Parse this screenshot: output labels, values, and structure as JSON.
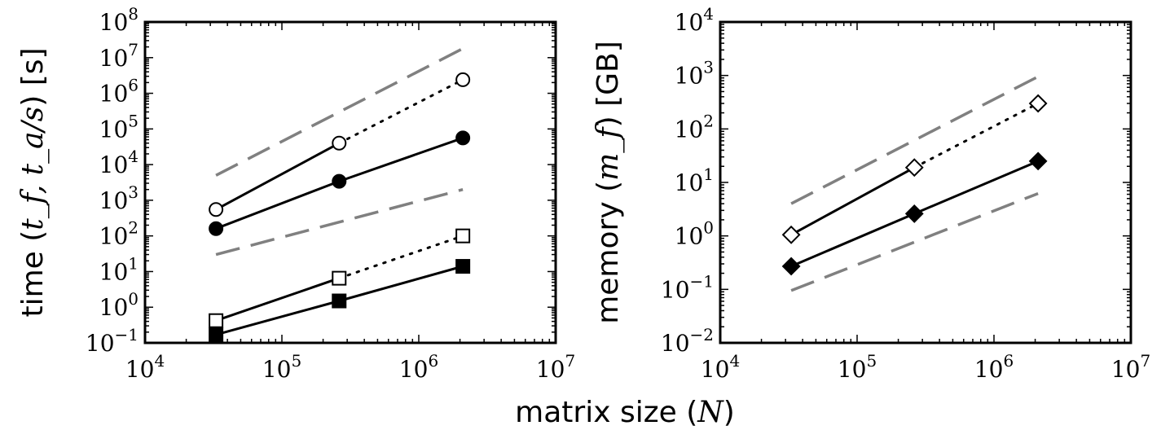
{
  "chart_data": [
    {
      "type": "line",
      "xscale": "log",
      "yscale": "log",
      "xlim": [
        10000,
        10000000
      ],
      "ylim": [
        0.1,
        100000000
      ],
      "xlabel": "",
      "ylabel": "time (t_f, t_a/s) [s]",
      "ylabel_parts": {
        "prefix": "time (",
        "math": "t_f, t_a/s",
        "suffix": ") [s]"
      },
      "xtick_labels": [
        {
          "value": 10000,
          "base": "10",
          "exp": "4"
        },
        {
          "value": 100000,
          "base": "10",
          "exp": "5"
        },
        {
          "value": 1000000,
          "base": "10",
          "exp": "6"
        },
        {
          "value": 10000000,
          "base": "10",
          "exp": "7"
        }
      ],
      "ytick_labels": [
        {
          "value": 0.1,
          "base": "10",
          "exp": "−1"
        },
        {
          "value": 1,
          "base": "10",
          "exp": "0"
        },
        {
          "value": 10,
          "base": "10",
          "exp": "1"
        },
        {
          "value": 100,
          "base": "10",
          "exp": "2"
        },
        {
          "value": 1000,
          "base": "10",
          "exp": "3"
        },
        {
          "value": 10000,
          "base": "10",
          "exp": "4"
        },
        {
          "value": 100000,
          "base": "10",
          "exp": "5"
        },
        {
          "value": 1000000,
          "base": "10",
          "exp": "6"
        },
        {
          "value": 10000000,
          "base": "10",
          "exp": "7"
        },
        {
          "value": 100000000,
          "base": "10",
          "exp": "8"
        }
      ],
      "series": [
        {
          "name": "open-circle-solid",
          "x": [
            33000,
            262000
          ],
          "y": [
            550,
            40000
          ],
          "marker": "circle",
          "fill": "open",
          "line": "solid"
        },
        {
          "name": "open-circle-dotted",
          "x": [
            262000,
            2100000
          ],
          "y": [
            40000,
            2400000
          ],
          "marker": "circle",
          "fill": "open",
          "line": "dotted",
          "marker_indices": [
            1
          ]
        },
        {
          "name": "filled-circle",
          "x": [
            33000,
            262000,
            2100000
          ],
          "y": [
            160,
            3400,
            56000
          ],
          "marker": "circle",
          "fill": "filled",
          "line": "solid"
        },
        {
          "name": "open-square-solid",
          "x": [
            33000,
            262000
          ],
          "y": [
            0.42,
            6.5
          ],
          "marker": "square",
          "fill": "open",
          "line": "solid"
        },
        {
          "name": "open-square-dotted",
          "x": [
            262000,
            2100000
          ],
          "y": [
            6.5,
            100
          ],
          "marker": "square",
          "fill": "open",
          "line": "dotted",
          "marker_indices": [
            1
          ]
        },
        {
          "name": "filled-square",
          "x": [
            33000,
            262000,
            2100000
          ],
          "y": [
            0.17,
            1.5,
            14
          ],
          "marker": "square",
          "fill": "filled",
          "line": "solid"
        },
        {
          "name": "reference-upper",
          "x": [
            33000,
            2100000
          ],
          "y": [
            5000,
            18000000
          ],
          "marker": "none",
          "line": "dashed"
        },
        {
          "name": "reference-lower",
          "x": [
            33000,
            2100000
          ],
          "y": [
            30,
            2000
          ],
          "marker": "none",
          "line": "dashed"
        }
      ]
    },
    {
      "type": "line",
      "xscale": "log",
      "yscale": "log",
      "xlim": [
        10000,
        10000000
      ],
      "ylim": [
        0.01,
        10000
      ],
      "xlabel": "",
      "ylabel": "memory (m_f) [GB]",
      "ylabel_parts": {
        "prefix": "memory (",
        "math": "m_f",
        "suffix": ") [GB]"
      },
      "xtick_labels": [
        {
          "value": 10000,
          "base": "10",
          "exp": "4"
        },
        {
          "value": 100000,
          "base": "10",
          "exp": "5"
        },
        {
          "value": 1000000,
          "base": "10",
          "exp": "6"
        },
        {
          "value": 10000000,
          "base": "10",
          "exp": "7"
        }
      ],
      "ytick_labels": [
        {
          "value": 0.01,
          "base": "10",
          "exp": "−2"
        },
        {
          "value": 0.1,
          "base": "10",
          "exp": "−1"
        },
        {
          "value": 1,
          "base": "10",
          "exp": "0"
        },
        {
          "value": 10,
          "base": "10",
          "exp": "1"
        },
        {
          "value": 100,
          "base": "10",
          "exp": "2"
        },
        {
          "value": 1000,
          "base": "10",
          "exp": "3"
        },
        {
          "value": 10000,
          "base": "10",
          "exp": "4"
        }
      ],
      "series": [
        {
          "name": "open-diamond-solid",
          "x": [
            33000,
            262000
          ],
          "y": [
            1.05,
            19
          ],
          "marker": "diamond",
          "fill": "open",
          "line": "solid"
        },
        {
          "name": "open-diamond-dotted",
          "x": [
            262000,
            2100000
          ],
          "y": [
            19,
            300
          ],
          "marker": "diamond",
          "fill": "open",
          "line": "dotted",
          "marker_indices": [
            1
          ]
        },
        {
          "name": "filled-diamond",
          "x": [
            33000,
            262000,
            2100000
          ],
          "y": [
            0.27,
            2.6,
            25
          ],
          "marker": "diamond",
          "fill": "filled",
          "line": "solid"
        },
        {
          "name": "reference-upper",
          "x": [
            33000,
            2100000
          ],
          "y": [
            4,
            950
          ],
          "marker": "none",
          "line": "dashed"
        },
        {
          "name": "reference-lower",
          "x": [
            33000,
            2100000
          ],
          "y": [
            0.095,
            6.2
          ],
          "marker": "none",
          "line": "dashed"
        }
      ]
    }
  ],
  "shared": {
    "xlabel_parts": {
      "prefix": "matrix size (",
      "math": "N",
      "suffix": ")"
    }
  }
}
